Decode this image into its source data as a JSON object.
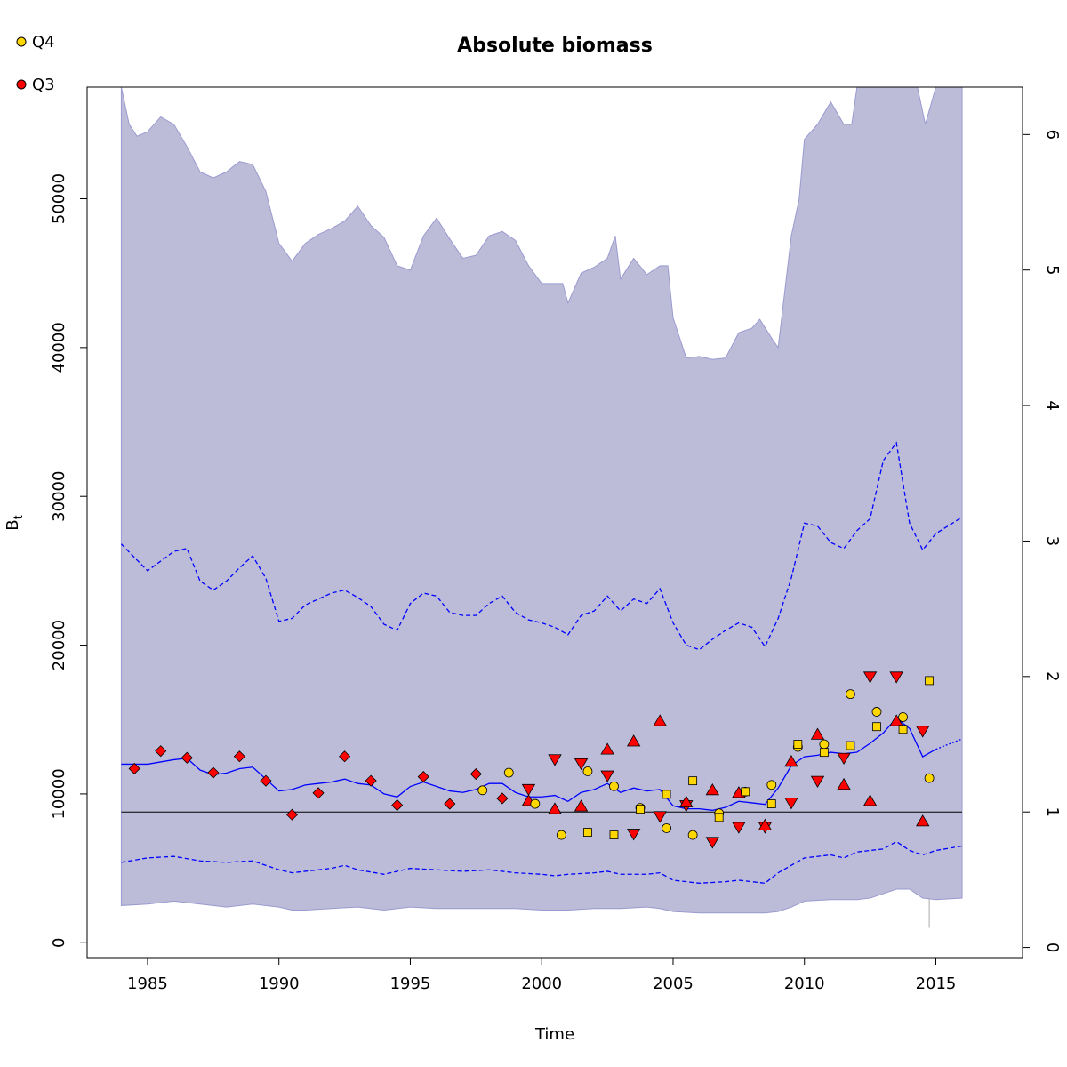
{
  "chart_data": {
    "type": "line",
    "title": "Absolute biomass",
    "xlabel": "Time",
    "ylabel": "B",
    "ylabel_subscript": "t",
    "xlim": [
      1982.7,
      2018.3
    ],
    "ylim": [
      -1000,
      57500
    ],
    "y2lim": [
      -0.075,
      6.35
    ],
    "x_ticks": [
      1985,
      1990,
      1995,
      2000,
      2005,
      2010,
      2015
    ],
    "y_ticks": [
      0,
      10000,
      20000,
      30000,
      40000,
      50000
    ],
    "y2_ticks": [
      0,
      1,
      2,
      3,
      4,
      5,
      6
    ],
    "grid": false,
    "legend_position": "top-left",
    "legend": [
      {
        "label": "Q4",
        "color": "#FFD700",
        "shape": "circle"
      },
      {
        "label": "Q3",
        "color": "#FF0000",
        "shape": "circle"
      }
    ],
    "reference_line_y2": 1,
    "colors": {
      "outer_band": "#d3d3d3",
      "inner_band": "#bcbcd9",
      "band_edge": "#9a9ad0",
      "line": "#0000ff",
      "q4": "#FFD700",
      "q3": "#FF0000"
    },
    "series": [
      {
        "name": "",
        "kind": "median",
        "x": [
          1984,
          1985,
          1986,
          1986.5,
          1987,
          1987.5,
          1988,
          1988.5,
          1989,
          1989.5,
          1990,
          1990.5,
          1991,
          1991.5,
          1992,
          1992.5,
          1993,
          1993.5,
          1994,
          1994.5,
          1995,
          1995.5,
          1996,
          1996.5,
          1997,
          1997.5,
          1998,
          1998.5,
          1999,
          1999.5,
          2000,
          2000.5,
          2001,
          2001.5,
          2002,
          2002.5,
          2003,
          2003.5,
          2004,
          2004.5,
          2005,
          2005.5,
          2006,
          2006.5,
          2007,
          2007.5,
          2008,
          2008.5,
          2009,
          2009.5,
          2010,
          2010.5,
          2011,
          2011.5,
          2012,
          2012.5,
          2013,
          2013.5,
          2014,
          2014.5,
          2015
        ],
        "y": [
          12000,
          12000,
          12300,
          12400,
          11600,
          11300,
          11400,
          11700,
          11800,
          11000,
          10200,
          10300,
          10600,
          10700,
          10800,
          11000,
          10700,
          10600,
          10000,
          9800,
          10500,
          10800,
          10500,
          10200,
          10100,
          10300,
          10700,
          10700,
          10100,
          9800,
          9800,
          9900,
          9500,
          10100,
          10300,
          10700,
          10100,
          10400,
          10200,
          10300,
          9200,
          9000,
          9000,
          8900,
          9100,
          9500,
          9400,
          9300,
          10400,
          11900,
          12500,
          12600,
          12800,
          12700,
          12800,
          13400,
          14100,
          15100,
          14400,
          12500,
          13000
        ]
      },
      {
        "name": "",
        "kind": "median-projection",
        "x": [
          2015,
          2016
        ],
        "y": [
          13000,
          13700
        ]
      },
      {
        "name": "",
        "kind": "upper-95",
        "x": [
          1984,
          1985,
          1986,
          1986.5,
          1987,
          1987.5,
          1988,
          1988.5,
          1989,
          1989.5,
          1990,
          1990.5,
          1991,
          1991.5,
          1992,
          1992.5,
          1993,
          1993.5,
          1994,
          1994.5,
          1995,
          1995.5,
          1996,
          1996.5,
          1997,
          1997.5,
          1998,
          1998.5,
          1999,
          1999.5,
          2000,
          2000.5,
          2001,
          2001.5,
          2002,
          2002.5,
          2003,
          2003.5,
          2004,
          2004.5,
          2005,
          2005.5,
          2006,
          2006.5,
          2007,
          2007.5,
          2008,
          2008.5,
          2009,
          2009.5,
          2010,
          2010.5,
          2011,
          2011.5,
          2012,
          2012.5,
          2013,
          2013.5,
          2014,
          2014.5,
          2015,
          2016
        ],
        "y": [
          26800,
          25000,
          26300,
          26500,
          24300,
          23700,
          24300,
          25200,
          26000,
          24500,
          21600,
          21800,
          22700,
          23100,
          23500,
          23700,
          23200,
          22600,
          21400,
          21000,
          22800,
          23500,
          23300,
          22200,
          22000,
          22000,
          22800,
          23300,
          22200,
          21700,
          21500,
          21200,
          20700,
          22000,
          22300,
          23300,
          22300,
          23100,
          22800,
          23800,
          21500,
          20000,
          19700,
          20400,
          21000,
          21500,
          21200,
          19900,
          21800,
          24500,
          28200,
          28000,
          26900,
          26500,
          27700,
          28500,
          32400,
          33600,
          28200,
          26400,
          27500,
          28600
        ]
      },
      {
        "name": "",
        "kind": "lower-95",
        "x": [
          1984,
          1985,
          1986,
          1987,
          1988,
          1989,
          1990,
          1990.5,
          1991,
          1992,
          1992.5,
          1993,
          1994,
          1995,
          1996,
          1997,
          1998,
          1999,
          2000,
          2000.5,
          2001,
          2002,
          2002.5,
          2003,
          2004,
          2004.5,
          2005,
          2005.5,
          2006,
          2007,
          2007.5,
          2008,
          2008.5,
          2009,
          2009.5,
          2010,
          2011,
          2011.5,
          2012,
          2013,
          2013.5,
          2014,
          2014.5,
          2015,
          2016
        ],
        "y": [
          5400,
          5700,
          5800,
          5500,
          5400,
          5500,
          4900,
          4700,
          4800,
          5000,
          5200,
          4900,
          4600,
          5000,
          4900,
          4800,
          4900,
          4700,
          4600,
          4500,
          4600,
          4700,
          4800,
          4600,
          4600,
          4700,
          4200,
          4100,
          4000,
          4100,
          4200,
          4100,
          4000,
          4700,
          5200,
          5700,
          5900,
          5700,
          6100,
          6300,
          6800,
          6200,
          5900,
          6200,
          6500
        ]
      },
      {
        "name": "",
        "kind": "outer-upper",
        "x": [
          1984,
          1984.3,
          1984.6,
          1985,
          1985.5,
          1986,
          1986.5,
          1987,
          1987.5,
          1988,
          1988.5,
          1989,
          1989.5,
          1990,
          1990.5,
          1991,
          1991.5,
          1992,
          1992.5,
          1993,
          1993.5,
          1994,
          1994.5,
          1995,
          1995.5,
          1996,
          1996.5,
          1997,
          1997.5,
          1998,
          1998.5,
          1999,
          1999.5,
          2000,
          2000.5,
          2000.8,
          2001,
          2001.5,
          2002,
          2002.5,
          2002.8,
          2003,
          2003.5,
          2004,
          2004.5,
          2004.8,
          2005,
          2005.5,
          2006,
          2006.5,
          2007,
          2007.5,
          2008,
          2008.3,
          2008.8,
          2009,
          2009.5,
          2009.8,
          2010,
          2010.5,
          2011,
          2011.5,
          2011.8,
          2012,
          2012.5,
          2013,
          2013.5,
          2014,
          2014.3,
          2014.6,
          2015,
          2016
        ],
        "y": [
          57500,
          55000,
          54200,
          54500,
          55500,
          55000,
          53500,
          51800,
          51400,
          51800,
          52500,
          52300,
          50500,
          47000,
          45800,
          47000,
          47600,
          48000,
          48500,
          49500,
          48200,
          47400,
          45500,
          45200,
          47500,
          48700,
          47300,
          46000,
          46200,
          47500,
          47800,
          47200,
          45500,
          44300,
          44300,
          44300,
          43000,
          45000,
          45400,
          46000,
          47500,
          44600,
          46000,
          44900,
          45500,
          45500,
          42000,
          39300,
          39400,
          39200,
          39300,
          41000,
          41300,
          41900,
          40500,
          40000,
          47500,
          50000,
          54000,
          55000,
          56500,
          55000,
          55000,
          57500,
          57500,
          57500,
          57500,
          57500,
          57500,
          55000,
          57500,
          57500
        ]
      },
      {
        "name": "",
        "kind": "outer-lower",
        "x": [
          1984,
          1985,
          1986,
          1987,
          1988,
          1989,
          1990,
          1990.5,
          1991,
          1992,
          1993,
          1994,
          1995,
          1996,
          1997,
          1998,
          1999,
          2000,
          2001,
          2002,
          2003,
          2004,
          2004.5,
          2005,
          2006,
          2007,
          2008,
          2008.5,
          2009,
          2009.5,
          2010,
          2011,
          2012,
          2012.5,
          2013,
          2013.5,
          2014,
          2014.5,
          2015,
          2016
        ],
        "y": [
          2500,
          2600,
          2800,
          2600,
          2400,
          2600,
          2400,
          2200,
          2200,
          2300,
          2400,
          2200,
          2400,
          2300,
          2300,
          2300,
          2300,
          2200,
          2200,
          2300,
          2300,
          2400,
          2300,
          2100,
          2000,
          2000,
          2000,
          2000,
          2100,
          2400,
          2800,
          2900,
          2900,
          3000,
          3300,
          3600,
          3600,
          3000,
          2900,
          3000
        ]
      }
    ],
    "points_q3_diamond": {
      "x": [
        1984.5,
        1985.5,
        1986.5,
        1987.5,
        1988.5,
        1989.5,
        1990.5,
        1991.5,
        1992.5,
        1993.5,
        1994.5,
        1995.5,
        1996.5,
        1997.5,
        1998.5
      ],
      "y2": [
        1.32,
        1.45,
        1.4,
        1.29,
        1.41,
        1.23,
        0.98,
        1.14,
        1.41,
        1.23,
        1.05,
        1.26,
        1.06,
        1.28,
        1.1
      ]
    },
    "points_q3_down": {
      "x": [
        1999.5,
        2000.5,
        2001.5,
        2002.5,
        2003.5,
        2004.5,
        2005.5,
        2006.5,
        2007.5,
        2008.5,
        2009.5,
        2010.5,
        2011.5,
        2012.5,
        2013.5,
        2014.5
      ],
      "y2": [
        1.17,
        1.39,
        1.36,
        1.27,
        0.84,
        0.97,
        1.05,
        0.78,
        0.89,
        0.89,
        1.07,
        1.23,
        1.4,
        2.0,
        2.0,
        1.6
      ]
    },
    "points_q3_up": {
      "x": [
        1999.5,
        2000.5,
        2001.5,
        2002.5,
        2003.5,
        2004.5,
        2005.5,
        2006.5,
        2007.5,
        2008.5,
        2009.5,
        2010.5,
        2011.5,
        2012.5,
        2013.5,
        2014.5
      ],
      "y2": [
        1.08,
        1.02,
        1.04,
        1.46,
        1.52,
        1.67,
        1.07,
        1.16,
        1.14,
        0.9,
        1.37,
        1.57,
        1.2,
        1.08,
        1.67,
        0.93
      ]
    },
    "points_q4_circle": {
      "x": [
        1997.75,
        1998.75,
        1999.75,
        2000.75,
        2001.75,
        2002.75,
        2003.75,
        2004.75,
        2005.75,
        2006.75,
        2007.75,
        2008.75,
        2009.75,
        2010.75,
        2011.75,
        2012.75,
        2013.75,
        2014.75
      ],
      "y2": [
        1.16,
        1.29,
        1.06,
        0.83,
        1.3,
        1.19,
        1.03,
        0.88,
        0.83,
        0.99,
        1.15,
        1.2,
        1.48,
        1.5,
        1.87,
        1.74,
        1.7,
        1.25
      ]
    },
    "points_q4_square": {
      "x": [
        2001.75,
        2002.75,
        2003.75,
        2004.75,
        2005.75,
        2006.75,
        2007.75,
        2008.75,
        2009.75,
        2010.75,
        2011.75,
        2012.75,
        2013.75,
        2014.75
      ],
      "y2": [
        0.85,
        0.83,
        1.02,
        1.13,
        1.23,
        0.96,
        1.15,
        1.06,
        1.5,
        1.44,
        1.49,
        1.63,
        1.61,
        1.97
      ]
    }
  }
}
